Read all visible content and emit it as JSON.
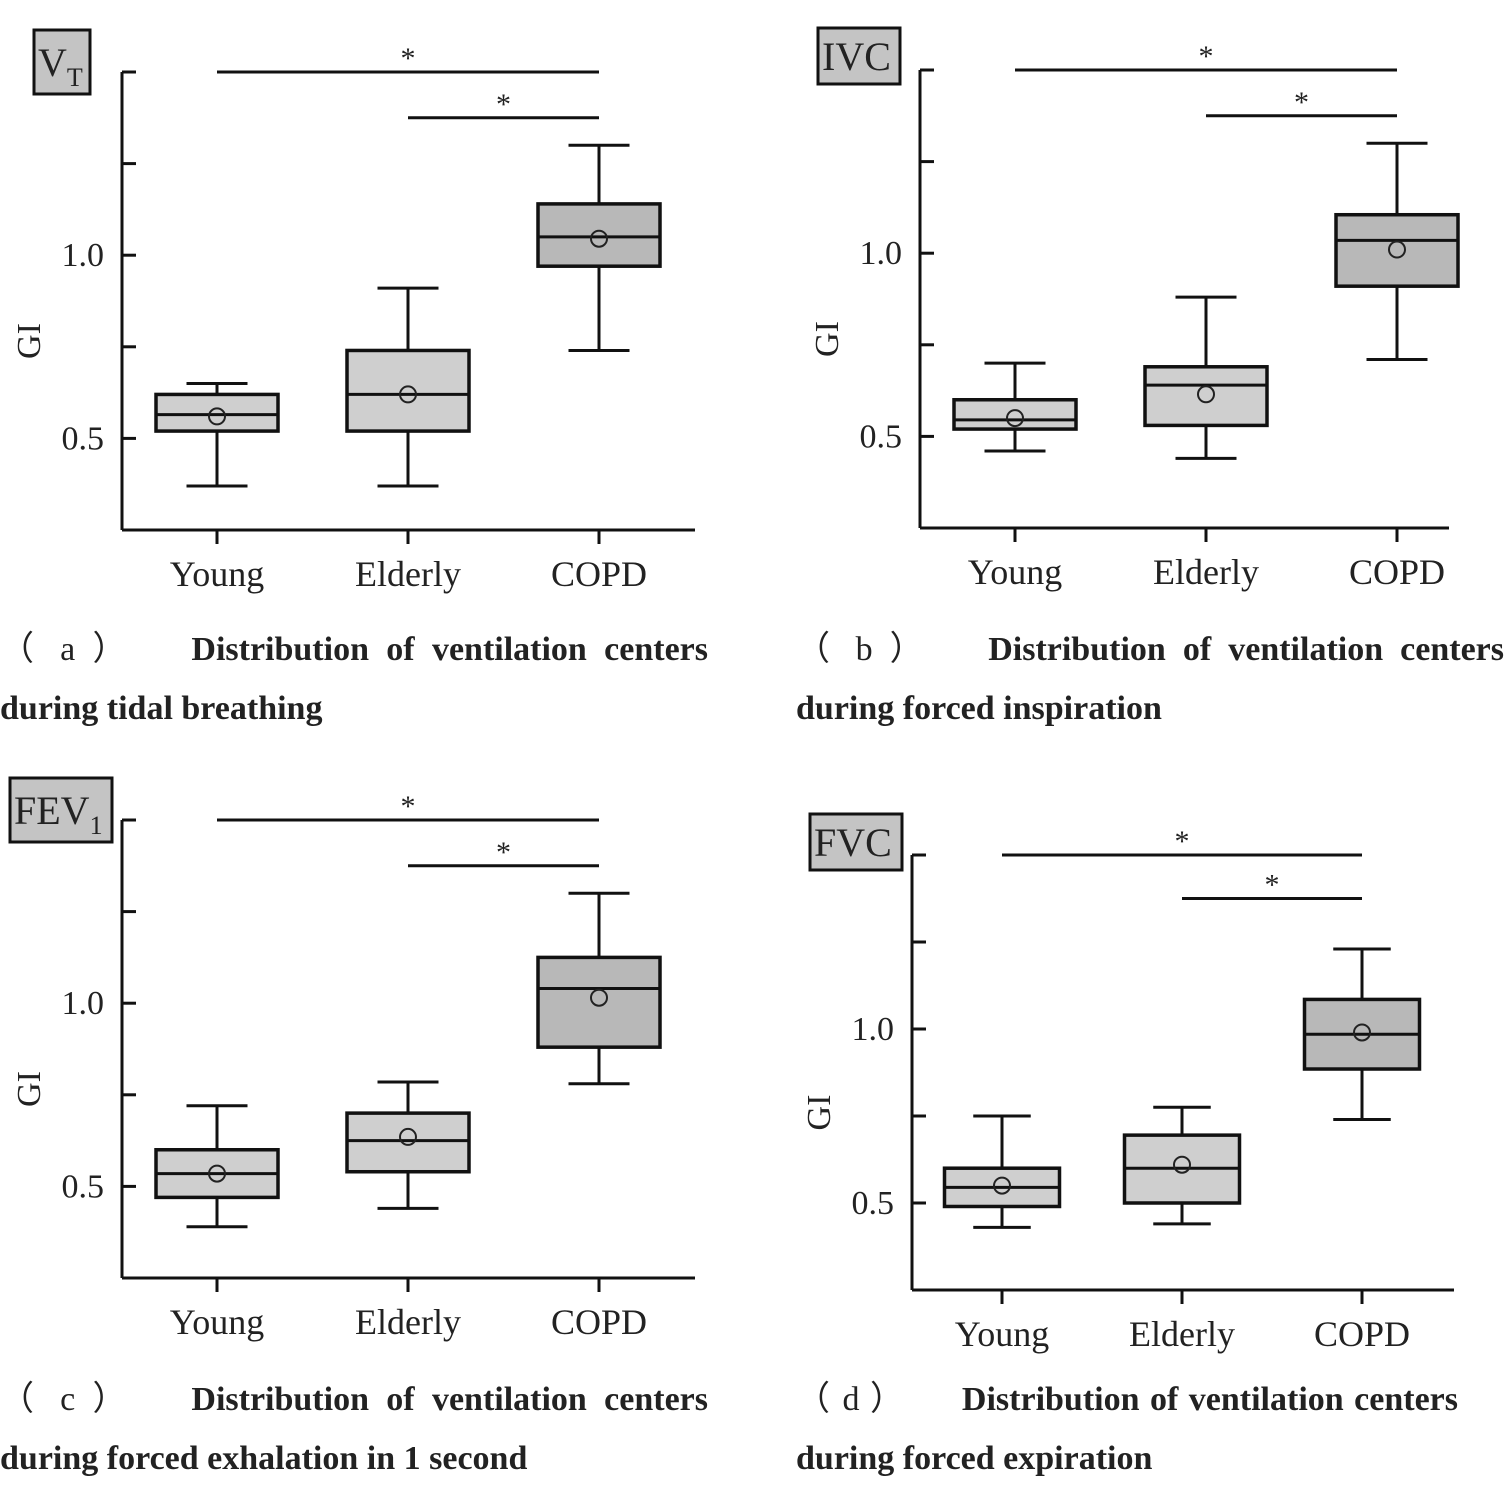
{
  "chart_data": [
    {
      "type": "box",
      "label": "VT",
      "label_sub": "T",
      "ylabel": "GI",
      "yticks": [
        "0.5",
        "1.0"
      ],
      "ylim": [
        0.25,
        1.5
      ],
      "categories": [
        "Young",
        "Elderly",
        "COPD"
      ],
      "boxes": [
        {
          "min": 0.37,
          "q1": 0.52,
          "median": 0.565,
          "q3": 0.62,
          "max": 0.65,
          "mean": 0.56
        },
        {
          "min": 0.37,
          "q1": 0.52,
          "median": 0.62,
          "q3": 0.74,
          "max": 0.91,
          "mean": 0.62
        },
        {
          "min": 0.74,
          "q1": 0.97,
          "median": 1.05,
          "q3": 1.14,
          "max": 1.3,
          "mean": 1.045
        }
      ],
      "significance": [
        {
          "from": 0,
          "to": 2,
          "y": 1.5,
          "label": "*"
        },
        {
          "from": 1,
          "to": 2,
          "y": 1.375,
          "label": "*"
        }
      ],
      "caption_tag": "（ a ）",
      "caption": "Distribution of ventilation centers during tidal breathing"
    },
    {
      "type": "box",
      "label": "IVC",
      "label_sub": "",
      "ylabel": "GI",
      "yticks": [
        "0.5",
        "1.0"
      ],
      "ylim": [
        0.25,
        1.5
      ],
      "categories": [
        "Young",
        "Elderly",
        "COPD"
      ],
      "boxes": [
        {
          "min": 0.46,
          "q1": 0.52,
          "median": 0.545,
          "q3": 0.6,
          "max": 0.7,
          "mean": 0.55
        },
        {
          "min": 0.44,
          "q1": 0.53,
          "median": 0.64,
          "q3": 0.69,
          "max": 0.88,
          "mean": 0.615
        },
        {
          "min": 0.71,
          "q1": 0.91,
          "median": 1.035,
          "q3": 1.105,
          "max": 1.3,
          "mean": 1.01
        }
      ],
      "significance": [
        {
          "from": 0,
          "to": 2,
          "y": 1.5,
          "label": "*"
        },
        {
          "from": 1,
          "to": 2,
          "y": 1.375,
          "label": "*"
        }
      ],
      "caption_tag": "（ b ）",
      "caption": "Distribution of ventilation centers during forced inspiration"
    },
    {
      "type": "box",
      "label": "FEV",
      "label_sub": "1",
      "ylabel": "GI",
      "yticks": [
        "0.5",
        "1.0"
      ],
      "ylim": [
        0.25,
        1.5
      ],
      "categories": [
        "Young",
        "Elderly",
        "COPD"
      ],
      "boxes": [
        {
          "min": 0.39,
          "q1": 0.47,
          "median": 0.535,
          "q3": 0.6,
          "max": 0.72,
          "mean": 0.535
        },
        {
          "min": 0.44,
          "q1": 0.54,
          "median": 0.625,
          "q3": 0.7,
          "max": 0.785,
          "mean": 0.635
        },
        {
          "min": 0.78,
          "q1": 0.88,
          "median": 1.04,
          "q3": 1.125,
          "max": 1.3,
          "mean": 1.015
        }
      ],
      "significance": [
        {
          "from": 0,
          "to": 2,
          "y": 1.5,
          "label": "*"
        },
        {
          "from": 1,
          "to": 2,
          "y": 1.375,
          "label": "*"
        }
      ],
      "caption_tag": "（ c ）",
      "caption": "Distribution of ventilation centers during forced exhalation in 1 second"
    },
    {
      "type": "box",
      "label": "FVC",
      "label_sub": "",
      "ylabel": "GI",
      "yticks": [
        "0.5",
        "1.0"
      ],
      "ylim": [
        0.25,
        1.5
      ],
      "categories": [
        "Young",
        "Elderly",
        "COPD"
      ],
      "boxes": [
        {
          "min": 0.43,
          "q1": 0.49,
          "median": 0.545,
          "q3": 0.6,
          "max": 0.75,
          "mean": 0.55
        },
        {
          "min": 0.44,
          "q1": 0.5,
          "median": 0.6,
          "q3": 0.695,
          "max": 0.775,
          "mean": 0.61
        },
        {
          "min": 0.74,
          "q1": 0.885,
          "median": 0.985,
          "q3": 1.085,
          "max": 1.23,
          "mean": 0.99
        }
      ],
      "significance": [
        {
          "from": 0,
          "to": 2,
          "y": 1.5,
          "label": "*"
        },
        {
          "from": 1,
          "to": 2,
          "y": 1.375,
          "label": "*"
        }
      ],
      "caption_tag": "（ d ）",
      "caption": "Distribution of ventilation centers during forced expiration"
    }
  ]
}
